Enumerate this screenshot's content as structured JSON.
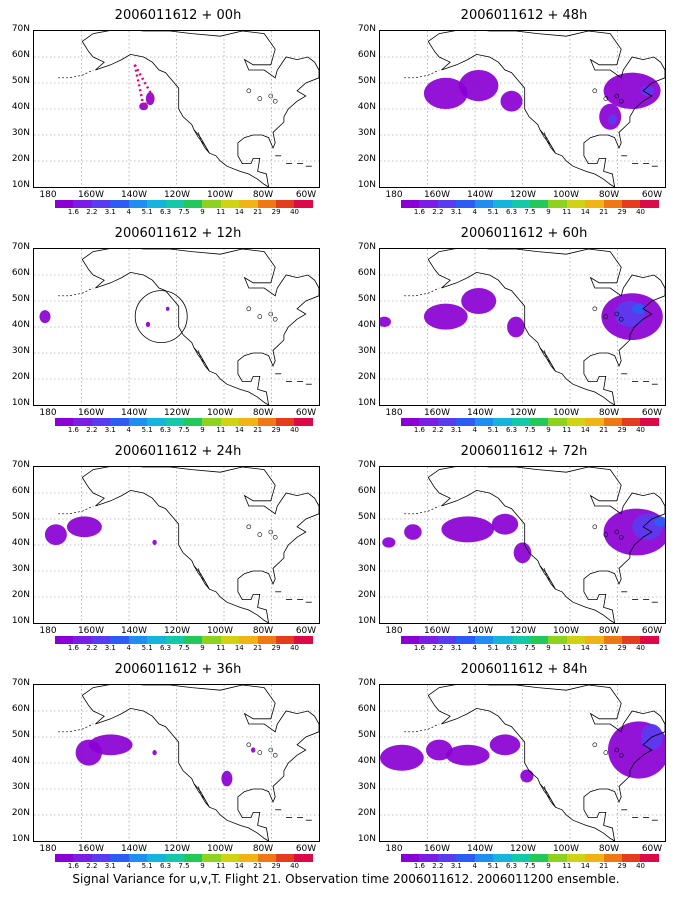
{
  "figure": {
    "caption": "Signal Variance for u,v,T. Flight 21. Observation time 2006011612. 2006011200 ensemble."
  },
  "axes": {
    "y_ticks": [
      "70N",
      "60N",
      "50N",
      "40N",
      "30N",
      "20N",
      "10N"
    ],
    "x_ticks": [
      "180",
      "160W",
      "140W",
      "120W",
      "100W",
      "80W",
      "60W"
    ]
  },
  "colorbar": {
    "labels": [
      "1.6",
      "2.2",
      "3.1",
      "4",
      "5.1",
      "6.3",
      "7.5",
      "9",
      "11",
      "14",
      "21",
      "29",
      "40"
    ],
    "colors": [
      "#8a00d4",
      "#7a1ee6",
      "#5a3cf0",
      "#2d5cf5",
      "#1e8ef0",
      "#14b4dc",
      "#14c8aa",
      "#22c85a",
      "#8cd21e",
      "#d2d214",
      "#f0b414",
      "#f07814",
      "#e63c1e",
      "#dc0a46"
    ]
  },
  "panels": [
    {
      "title": "2006011612 + 00h"
    },
    {
      "title": "2006011612 + 48h"
    },
    {
      "title": "2006011612 + 12h"
    },
    {
      "title": "2006011612 + 60h"
    },
    {
      "title": "2006011612 + 24h"
    },
    {
      "title": "2006011612 + 72h"
    },
    {
      "title": "2006011612 + 84h"
    },
    {
      "title": "2006011612 + 36h"
    }
  ]
}
